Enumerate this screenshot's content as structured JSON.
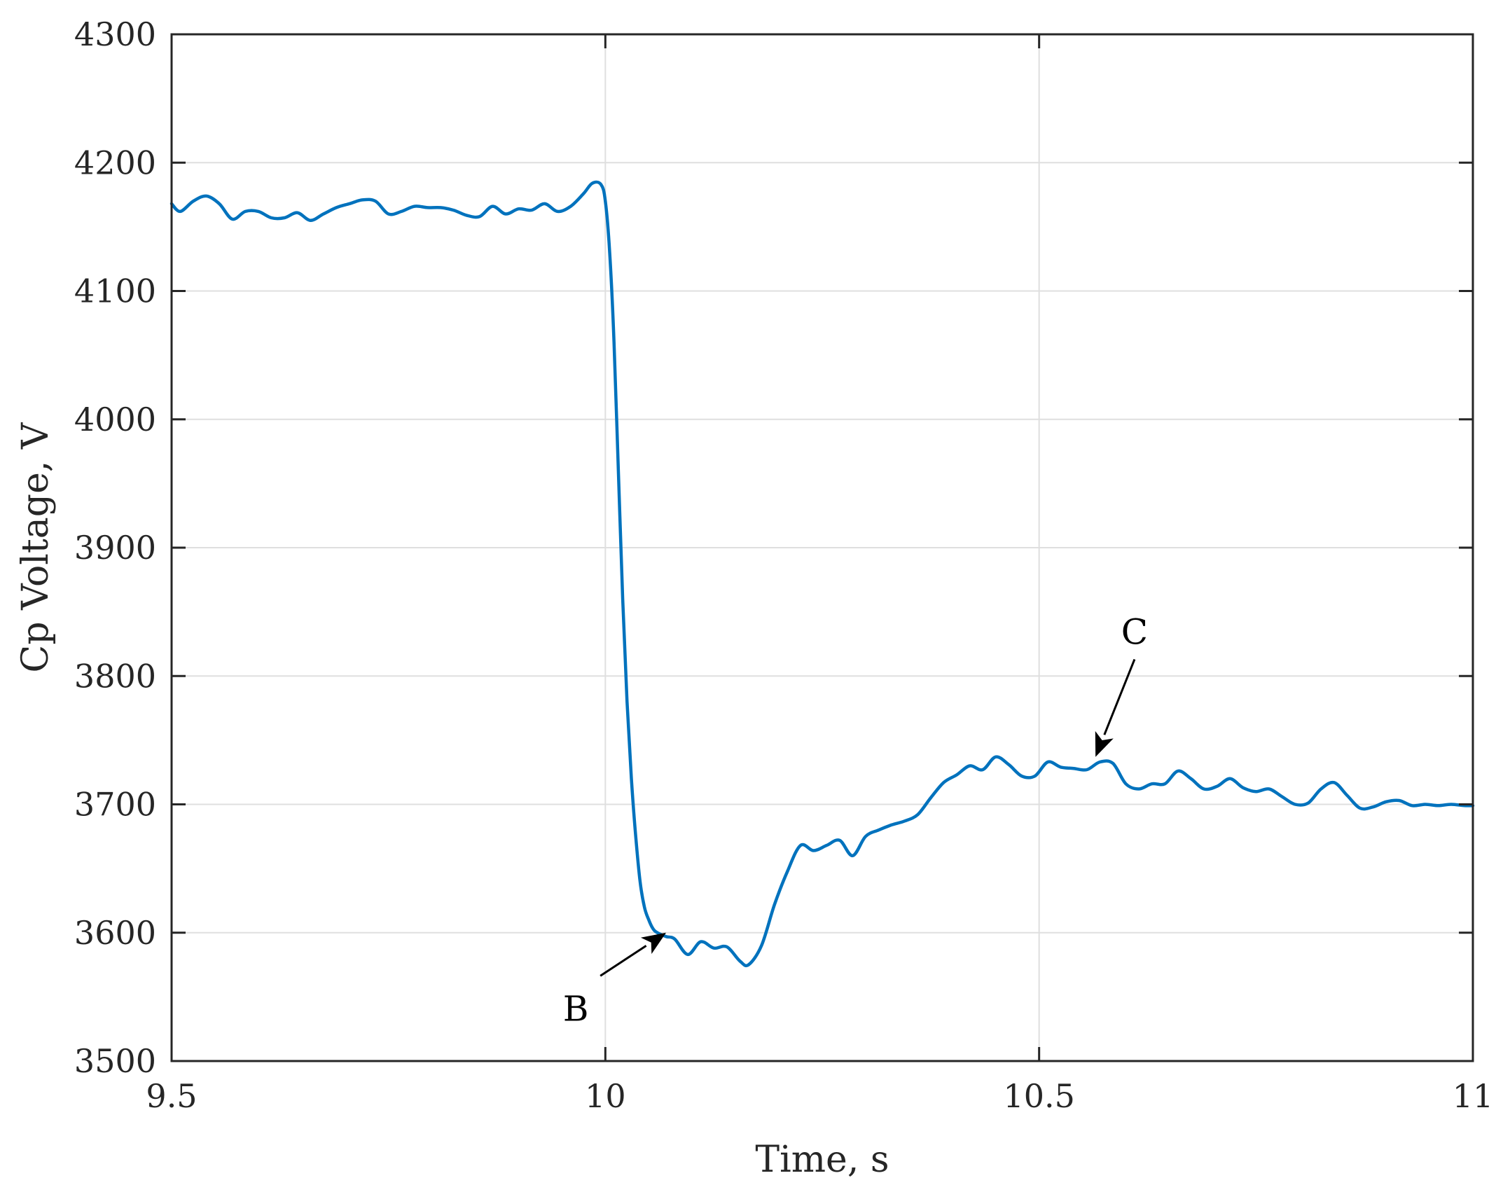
{
  "chart_data": {
    "type": "line",
    "title": "",
    "xlabel": "Time, s",
    "ylabel": "Cp Voltage, V",
    "xlim": [
      9.5,
      11
    ],
    "ylim": [
      3500,
      4300
    ],
    "xticks": [
      "9.5",
      "10",
      "10.5",
      "11"
    ],
    "yticks": [
      "3500",
      "3600",
      "3700",
      "3800",
      "3900",
      "4000",
      "4100",
      "4200",
      "4300"
    ],
    "grid": true,
    "legend": null,
    "series": [
      {
        "name": "Cp Voltage",
        "color": "#0072BD",
        "x": [
          9.5,
          9.51,
          9.525,
          9.54,
          9.555,
          9.57,
          9.585,
          9.6,
          9.615,
          9.63,
          9.645,
          9.66,
          9.675,
          9.69,
          9.705,
          9.72,
          9.735,
          9.75,
          9.765,
          9.78,
          9.795,
          9.81,
          9.825,
          9.84,
          9.855,
          9.87,
          9.885,
          9.9,
          9.915,
          9.93,
          9.945,
          9.96,
          9.975,
          9.985,
          9.995,
          10.0,
          10.005,
          10.01,
          10.015,
          10.02,
          10.025,
          10.03,
          10.035,
          10.04,
          10.045,
          10.05,
          10.055,
          10.06,
          10.07,
          10.08,
          10.095,
          10.11,
          10.125,
          10.14,
          10.155,
          10.165,
          10.18,
          10.195,
          10.21,
          10.225,
          10.24,
          10.255,
          10.27,
          10.285,
          10.3,
          10.315,
          10.33,
          10.345,
          10.36,
          10.375,
          10.39,
          10.405,
          10.42,
          10.435,
          10.45,
          10.465,
          10.48,
          10.495,
          10.51,
          10.525,
          10.54,
          10.555,
          10.57,
          10.585,
          10.6,
          10.615,
          10.63,
          10.645,
          10.66,
          10.675,
          10.69,
          10.705,
          10.72,
          10.735,
          10.75,
          10.765,
          10.78,
          10.795,
          10.81,
          10.825,
          10.84,
          10.855,
          10.87,
          10.885,
          10.9,
          10.915,
          10.93,
          10.945,
          10.96,
          10.975,
          10.99,
          11.0
        ],
        "y": [
          4168,
          4162,
          4170,
          4174,
          4168,
          4156,
          4162,
          4162,
          4157,
          4157,
          4161,
          4155,
          4160,
          4165,
          4168,
          4171,
          4170,
          4160,
          4162,
          4166,
          4165,
          4165,
          4163,
          4159,
          4158,
          4166,
          4160,
          4164,
          4163,
          4168,
          4162,
          4166,
          4176,
          4184,
          4183,
          4170,
          4130,
          4060,
          3960,
          3860,
          3780,
          3720,
          3675,
          3640,
          3620,
          3610,
          3603,
          3600,
          3597,
          3595,
          3583,
          3593,
          3588,
          3589,
          3578,
          3575,
          3590,
          3622,
          3648,
          3668,
          3664,
          3668,
          3672,
          3660,
          3675,
          3680,
          3684,
          3687,
          3692,
          3705,
          3717,
          3723,
          3730,
          3727,
          3737,
          3731,
          3722,
          3722,
          3733,
          3729,
          3728,
          3727,
          3733,
          3732,
          3716,
          3712,
          3716,
          3716,
          3726,
          3720,
          3712,
          3714,
          3720,
          3713,
          3710,
          3712,
          3706,
          3700,
          3701,
          3712,
          3717,
          3707,
          3697,
          3698,
          3702,
          3703,
          3699,
          3700,
          3699,
          3700,
          3699,
          3699
        ]
      }
    ],
    "annotations": [
      {
        "text": "B",
        "x": 10.07,
        "y": 3600,
        "label_pos": [
          9.97,
          3550
        ]
      },
      {
        "text": "C",
        "x": 10.565,
        "y": 3737,
        "label_pos": [
          10.61,
          3825
        ]
      }
    ]
  }
}
